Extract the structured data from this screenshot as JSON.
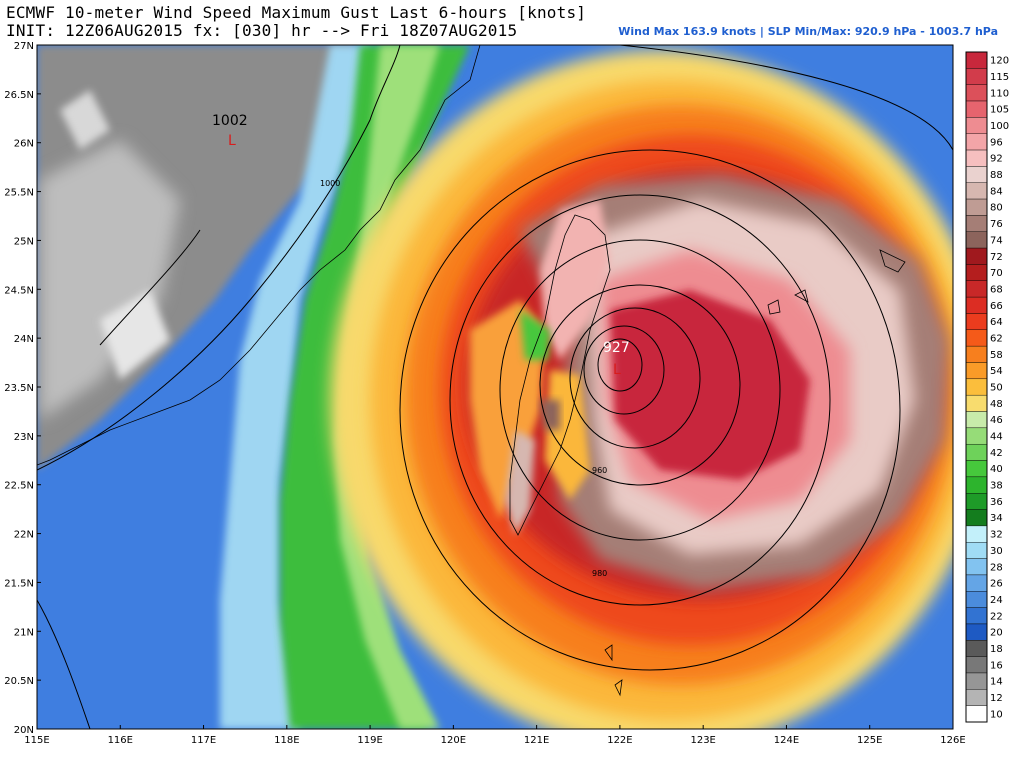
{
  "header": {
    "title": "ECMWF 10-meter Wind Speed Maximum Gust Last 6-hours [knots]",
    "init_line": "INIT: 12Z06AUG2015 fx: [030] hr --> Fri 18Z07AUG2015",
    "stats": "Wind Max 163.9 knots | SLP Min/Max: 920.9 hPa - 1003.7 hPa"
  },
  "map": {
    "lat_labels": [
      "27N",
      "26.5N",
      "26N",
      "25.5N",
      "25N",
      "24.5N",
      "24N",
      "23.5N",
      "23N",
      "22.5N",
      "22N",
      "21.5N",
      "21N",
      "20.5N",
      "20N"
    ],
    "lon_labels": [
      "115E",
      "116E",
      "117E",
      "118E",
      "119E",
      "120E",
      "121E",
      "122E",
      "123E",
      "124E",
      "125E",
      "126E"
    ],
    "pressure_labels": {
      "low_center": "927",
      "low_marker": "L",
      "high_value": "1002",
      "high_marker": "L",
      "isobar_1000": "1000",
      "isobar_960": "960",
      "isobar_980": "980"
    }
  },
  "colorbar": {
    "levels": [
      {
        "label": "120",
        "color": "#c8283c"
      },
      {
        "label": "115",
        "color": "#d23c4b"
      },
      {
        "label": "110",
        "color": "#dc505a"
      },
      {
        "label": "105",
        "color": "#e6646e"
      },
      {
        "label": "100",
        "color": "#ee8c91"
      },
      {
        "label": "96",
        "color": "#f3a5a8"
      },
      {
        "label": "92",
        "color": "#f6bfbf"
      },
      {
        "label": "88",
        "color": "#ead2cf"
      },
      {
        "label": "84",
        "color": "#d6b7b0"
      },
      {
        "label": "80",
        "color": "#bf9c94"
      },
      {
        "label": "76",
        "color": "#a57e76"
      },
      {
        "label": "74",
        "color": "#8c645c"
      },
      {
        "label": "72",
        "color": "#a0191e"
      },
      {
        "label": "70",
        "color": "#b41e1e"
      },
      {
        "label": "68",
        "color": "#c82828"
      },
      {
        "label": "66",
        "color": "#dc2d23"
      },
      {
        "label": "64",
        "color": "#eb3c1e"
      },
      {
        "label": "62",
        "color": "#f55a19"
      },
      {
        "label": "58",
        "color": "#f77f1e"
      },
      {
        "label": "54",
        "color": "#fa9b28"
      },
      {
        "label": "50",
        "color": "#fbbe3c"
      },
      {
        "label": "48",
        "color": "#f8dc6e"
      },
      {
        "label": "46",
        "color": "#c8ebaa"
      },
      {
        "label": "44",
        "color": "#96dc78"
      },
      {
        "label": "42",
        "color": "#6ed25a"
      },
      {
        "label": "40",
        "color": "#46c83c"
      },
      {
        "label": "38",
        "color": "#2db42d"
      },
      {
        "label": "36",
        "color": "#1e9b28"
      },
      {
        "label": "34",
        "color": "#147d1e"
      },
      {
        "label": "32",
        "color": "#c3f0fa"
      },
      {
        "label": "30",
        "color": "#a0dcf5"
      },
      {
        "label": "28",
        "color": "#82c3f0"
      },
      {
        "label": "26",
        "color": "#64a5e6"
      },
      {
        "label": "24",
        "color": "#4b8cdc"
      },
      {
        "label": "22",
        "color": "#3273d2"
      },
      {
        "label": "20",
        "color": "#1e5ac3"
      },
      {
        "label": "18",
        "color": "#5a5a5a"
      },
      {
        "label": "16",
        "color": "#787878"
      },
      {
        "label": "14",
        "color": "#969696"
      },
      {
        "label": "12",
        "color": "#b4b4b4"
      },
      {
        "label": "10",
        "color": "#ffffff"
      }
    ]
  }
}
